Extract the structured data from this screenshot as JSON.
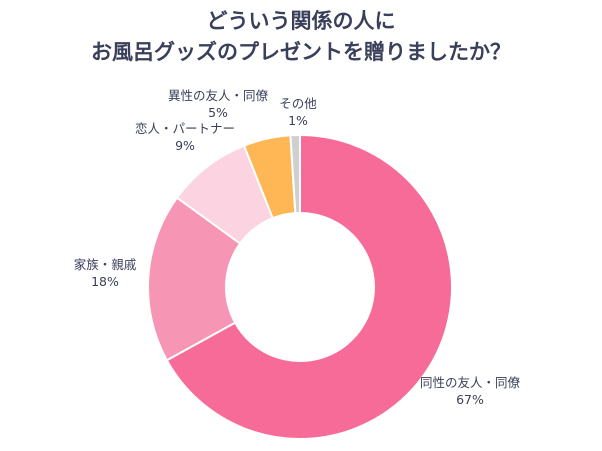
{
  "chart_data": {
    "type": "pie",
    "title_lines": [
      "どういう関係の人に",
      "お風呂グッズのプレゼントを贈りましたか？"
    ],
    "slices": [
      {
        "label": "同性の友人・同僚",
        "value": 67,
        "value_label": "67%",
        "color": "#f76b99"
      },
      {
        "label": "家族・親戚",
        "value": 18,
        "value_label": "18%",
        "color": "#f795b5"
      },
      {
        "label": "恋人・パートナー",
        "value": 9,
        "value_label": "9%",
        "color": "#fcd3e1"
      },
      {
        "label": "異性の友人・同僚",
        "value": 5,
        "value_label": "5%",
        "color": "#ffb755"
      },
      {
        "label": "その他",
        "value": 1,
        "value_label": "1%",
        "color": "#cfcfcf"
      }
    ]
  }
}
